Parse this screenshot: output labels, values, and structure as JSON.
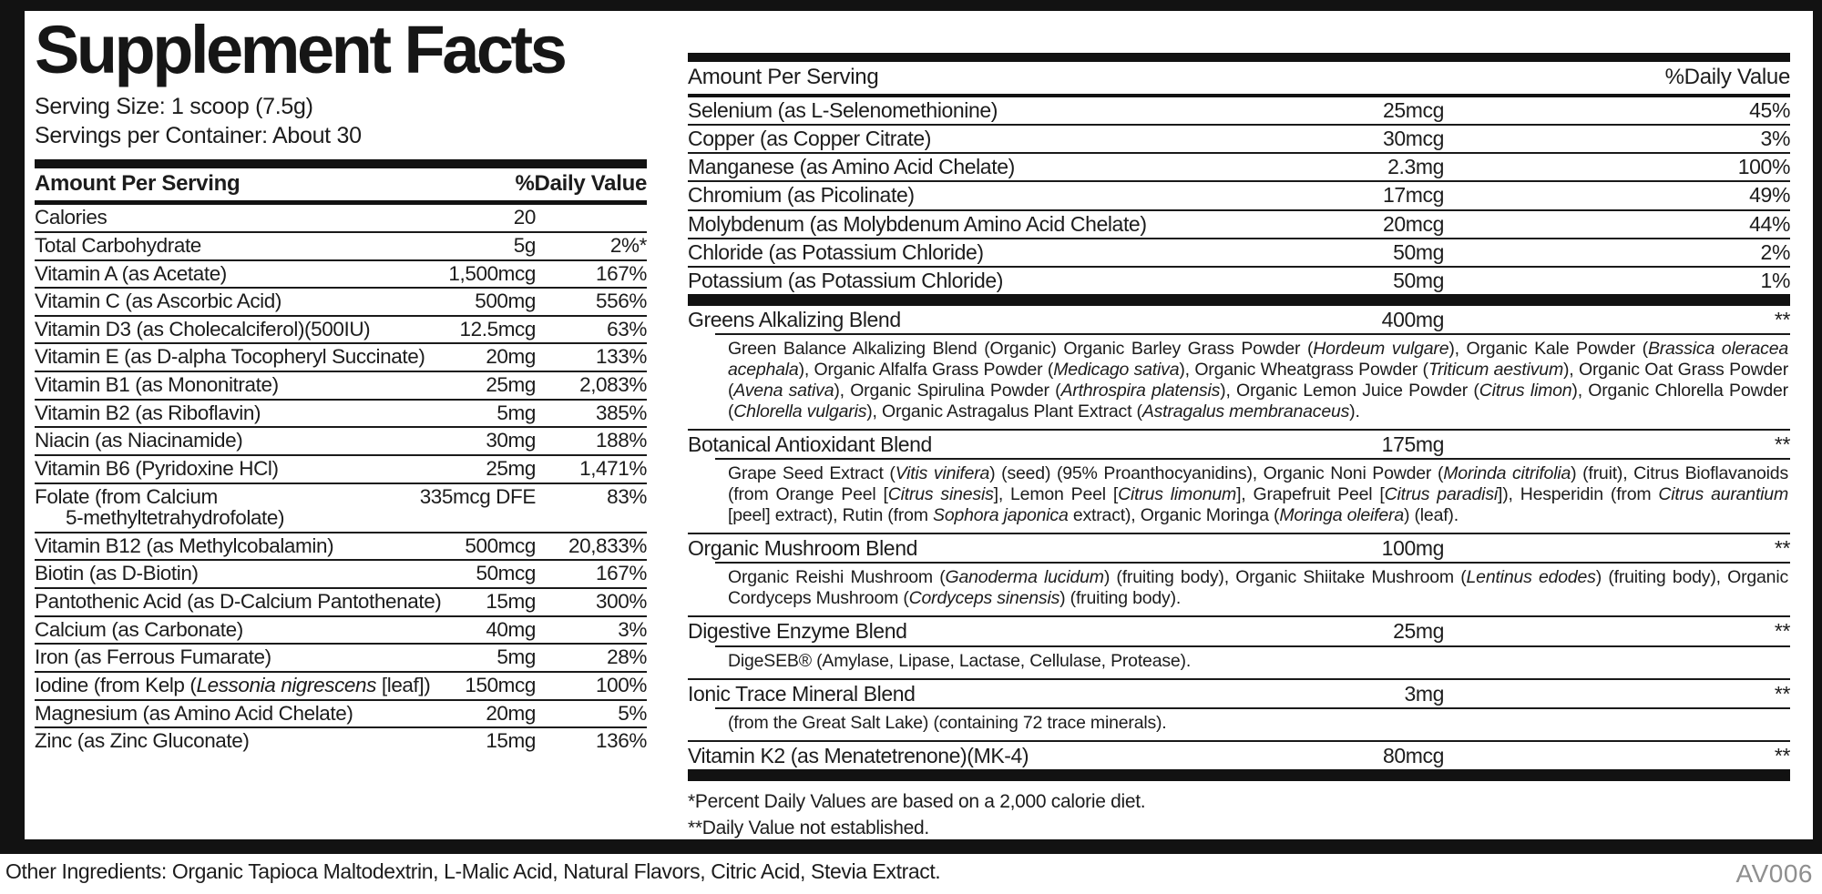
{
  "label": {
    "title": "Supplement Facts",
    "serving_size": "Serving Size: 1 scoop (7.5g)",
    "servings_per_container": "Servings per Container: About 30",
    "other_ingredients": "Other Ingredients: Organic Tapioca Maltodextrin, L-Malic Acid, Natural Flavors, Citric Acid, Stevia Extract.",
    "product_code": "AV006",
    "footnote_dv_basis": "*Percent Daily Values are based on a 2,000 calorie diet.",
    "footnote_not_established": "**Daily Value not established."
  },
  "left_table": {
    "header_amount": "Amount Per Serving",
    "header_dv": "%Daily Value",
    "rows": [
      {
        "name": "Calories",
        "amount": "20",
        "dv": ""
      },
      {
        "name": "Total Carbohydrate",
        "amount": "5g",
        "dv": "2%*"
      },
      {
        "name": "Vitamin A (as Acetate)",
        "amount": "1,500mcg",
        "dv": "167%"
      },
      {
        "name": "Vitamin C (as Ascorbic Acid)",
        "amount": "500mg",
        "dv": "556%"
      },
      {
        "name": "Vitamin D3 (as Cholecalciferol)(500IU)",
        "amount": "12.5mcg",
        "dv": "63%"
      },
      {
        "name": "Vitamin E (as D-alpha Tocopheryl Succinate)",
        "amount": "20mg",
        "dv": "133%"
      },
      {
        "name": "Vitamin B1 (as Mononitrate)",
        "amount": "25mg",
        "dv": "2,083%"
      },
      {
        "name": "Vitamin B2 (as Riboflavin)",
        "amount": "5mg",
        "dv": "385%"
      },
      {
        "name": "Niacin (as Niacinamide)",
        "amount": "30mg",
        "dv": "188%"
      },
      {
        "name": "Vitamin B6 (Pyridoxine HCl)",
        "amount": "25mg",
        "dv": "1,471%"
      },
      {
        "name": [
          {
            "t": "Folate (from Calcium"
          },
          {
            "br": true
          },
          {
            "t": "5-methyltetrahydrofolate)"
          }
        ],
        "amount": "335mcg DFE",
        "dv": "83%"
      },
      {
        "name": "Vitamin B12 (as Methylcobalamin)",
        "amount": "500mcg",
        "dv": "20,833%"
      },
      {
        "name": "Biotin (as D-Biotin)",
        "amount": "50mcg",
        "dv": "167%"
      },
      {
        "name": "Pantothenic Acid (as D-Calcium Pantothenate)",
        "amount": "15mg",
        "dv": "300%"
      },
      {
        "name": "Calcium (as Carbonate)",
        "amount": "40mg",
        "dv": "3%"
      },
      {
        "name": "Iron (as Ferrous Fumarate)",
        "amount": "5mg",
        "dv": "28%"
      },
      {
        "name": [
          {
            "t": "Iodine (from Kelp ("
          },
          {
            "t": "Lessonia nigrescens",
            "i": true
          },
          {
            "t": " [leaf])"
          }
        ],
        "amount": "150mcg",
        "dv": "100%"
      },
      {
        "name": "Magnesium (as Amino Acid Chelate)",
        "amount": "20mg",
        "dv": "5%"
      },
      {
        "name": "Zinc (as Zinc Gluconate)",
        "amount": "15mg",
        "dv": "136%"
      }
    ]
  },
  "right_table": {
    "header_amount": "Amount Per Serving",
    "header_dv": "%Daily Value",
    "rows": [
      {
        "name": "Selenium (as L-Selenomethionine)",
        "amount": "25mcg",
        "dv": "45%"
      },
      {
        "name": "Copper (as Copper Citrate)",
        "amount": "30mcg",
        "dv": "3%"
      },
      {
        "name": "Manganese (as Amino Acid Chelate)",
        "amount": "2.3mg",
        "dv": "100%"
      },
      {
        "name": "Chromium (as Picolinate)",
        "amount": "17mcg",
        "dv": "49%"
      },
      {
        "name": "Molybdenum (as Molybdenum Amino Acid Chelate)",
        "amount": "20mcg",
        "dv": "44%"
      },
      {
        "name": "Chloride (as Potassium Chloride)",
        "amount": "50mg",
        "dv": "2%"
      },
      {
        "name": "Potassium (as Potassium Chloride)",
        "amount": "50mg",
        "dv": "1%"
      }
    ],
    "blends": [
      {
        "name": "Greens Alkalizing Blend",
        "amount": "400mg",
        "dv": "**",
        "desc": [
          {
            "t": "Green Balance Alkalizing Blend (Organic) Organic Barley Grass Powder ("
          },
          {
            "t": "Hordeum vulgare",
            "i": true
          },
          {
            "t": "), Organic Kale Powder ("
          },
          {
            "t": "Brassica oleracea acephala",
            "i": true
          },
          {
            "t": "), Organic Alfalfa Grass Powder ("
          },
          {
            "t": "Medicago sativa",
            "i": true
          },
          {
            "t": "), Organic Wheatgrass Powder ("
          },
          {
            "t": "Triticum aestivum",
            "i": true
          },
          {
            "t": "), Organic Oat Grass Powder ("
          },
          {
            "t": "Avena sativa",
            "i": true
          },
          {
            "t": "), Organic Spirulina Powder ("
          },
          {
            "t": "Arthrospira platensis",
            "i": true
          },
          {
            "t": "), Organic Lemon Juice Powder ("
          },
          {
            "t": "Citrus limon",
            "i": true
          },
          {
            "t": "), Organic Chlorella Powder ("
          },
          {
            "t": "Chlorella vulgaris",
            "i": true
          },
          {
            "t": "), Organic Astragalus Plant Extract ("
          },
          {
            "t": "Astragalus membranaceus",
            "i": true
          },
          {
            "t": ")."
          }
        ]
      },
      {
        "name": "Botanical Antioxidant Blend",
        "amount": "175mg",
        "dv": "**",
        "desc": [
          {
            "t": "Grape Seed Extract ("
          },
          {
            "t": "Vitis vinifera",
            "i": true
          },
          {
            "t": ") (seed) (95% Proanthocyanidins), Organic Noni Powder ("
          },
          {
            "t": "Morinda citrifolia",
            "i": true
          },
          {
            "t": ") (fruit), Citrus Bioflavanoids (from Orange Peel ["
          },
          {
            "t": "Citrus sinesis",
            "i": true
          },
          {
            "t": "], Lemon Peel ["
          },
          {
            "t": "Citrus limonum",
            "i": true
          },
          {
            "t": "], Grapefruit Peel ["
          },
          {
            "t": "Citrus paradisi",
            "i": true
          },
          {
            "t": "]), Hesperidin (from "
          },
          {
            "t": "Citrus aurantium",
            "i": true
          },
          {
            "t": " [peel] extract), Rutin (from "
          },
          {
            "t": "Sophora japonica",
            "i": true
          },
          {
            "t": " extract), Organic Moringa ("
          },
          {
            "t": "Moringa oleifera",
            "i": true
          },
          {
            "t": ") (leaf)."
          }
        ]
      },
      {
        "name": "Organic Mushroom Blend",
        "amount": "100mg",
        "dv": "**",
        "desc": [
          {
            "t": "Organic Reishi Mushroom ("
          },
          {
            "t": "Ganoderma lucidum",
            "i": true
          },
          {
            "t": ") (fruiting body), Organic Shiitake Mushroom ("
          },
          {
            "t": "Lentinus edodes",
            "i": true
          },
          {
            "t": ") (fruiting body), Organic Cordyceps Mushroom ("
          },
          {
            "t": "Cordyceps sinensis",
            "i": true
          },
          {
            "t": ") (fruiting body)."
          }
        ]
      },
      {
        "name": "Digestive Enzyme Blend",
        "amount": "25mg",
        "dv": "**",
        "desc": [
          {
            "t": "DigeSEB® (Amylase, Lipase, Lactase, Cellulase, Protease)."
          }
        ]
      },
      {
        "name": "Ionic Trace Mineral Blend",
        "amount": "3mg",
        "dv": "**",
        "desc": [
          {
            "t": "(from the Great Salt Lake) (containing 72 trace minerals)."
          }
        ]
      },
      {
        "name": "Vitamin K2 (as Menatetrenone)(MK-4)",
        "amount": "80mcg",
        "dv": "**"
      }
    ]
  }
}
